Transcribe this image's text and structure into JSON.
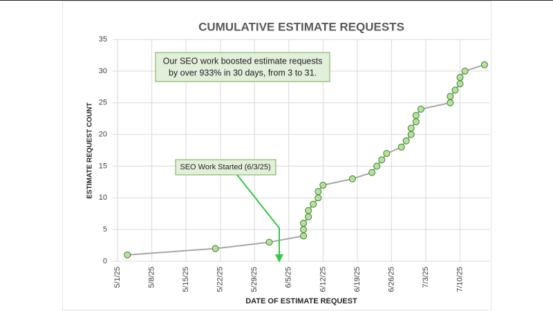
{
  "chart_data": {
    "type": "line",
    "title": "CUMULATIVE ESTIMATE REQUESTS",
    "xlabel": "DATE OF ESTIMATE REQUEST",
    "ylabel": "ESTIMATE REQUEST COUNT",
    "annotations": [
      {
        "lines": [
          "Our SEO work boosted estimate requests",
          "by over 933% in 30 days, from 3 to 31."
        ]
      },
      {
        "lines": [
          "SEO Work Started (6/3/25)"
        ]
      }
    ],
    "x": [
      "2025-05-03",
      "2025-05-21",
      "2025-06-01",
      "2025-06-08",
      "2025-06-08",
      "2025-06-08",
      "2025-06-09",
      "2025-06-09",
      "2025-06-10",
      "2025-06-11",
      "2025-06-11",
      "2025-06-12",
      "2025-06-18",
      "2025-06-22",
      "2025-06-23",
      "2025-06-24",
      "2025-06-25",
      "2025-06-28",
      "2025-06-29",
      "2025-06-30",
      "2025-06-30",
      "2025-07-01",
      "2025-07-01",
      "2025-07-02",
      "2025-07-08",
      "2025-07-08",
      "2025-07-09",
      "2025-07-10",
      "2025-07-10",
      "2025-07-11",
      "2025-07-15"
    ],
    "values": [
      1,
      2,
      3,
      4,
      5,
      6,
      7,
      8,
      9,
      10,
      11,
      12,
      13,
      14,
      15,
      16,
      17,
      18,
      19,
      20,
      21,
      22,
      23,
      24,
      25,
      26,
      27,
      28,
      29,
      30,
      31
    ],
    "color": "#a6a6a6",
    "marker_color": "#b6e09e",
    "xlim": [
      "2025-04-30",
      "2025-07-16"
    ],
    "xticks": [
      {
        "value": "2025-05-01",
        "label": "5/1/25"
      },
      {
        "value": "2025-05-08",
        "label": "5/8/25"
      },
      {
        "value": "2025-05-15",
        "label": "5/15/25"
      },
      {
        "value": "2025-05-22",
        "label": "5/22/25"
      },
      {
        "value": "2025-05-29",
        "label": "5/29/25"
      },
      {
        "value": "2025-06-05",
        "label": "6/5/25"
      },
      {
        "value": "2025-06-12",
        "label": "6/12/25"
      },
      {
        "value": "2025-06-19",
        "label": "6/19/25"
      },
      {
        "value": "2025-06-26",
        "label": "6/26/25"
      },
      {
        "value": "2025-07-03",
        "label": "7/3/25"
      },
      {
        "value": "2025-07-10",
        "label": "7/10/25"
      }
    ],
    "ylim": [
      0,
      35
    ],
    "yticks": [
      0,
      5,
      10,
      15,
      20,
      25,
      30,
      35
    ],
    "grid": true
  }
}
